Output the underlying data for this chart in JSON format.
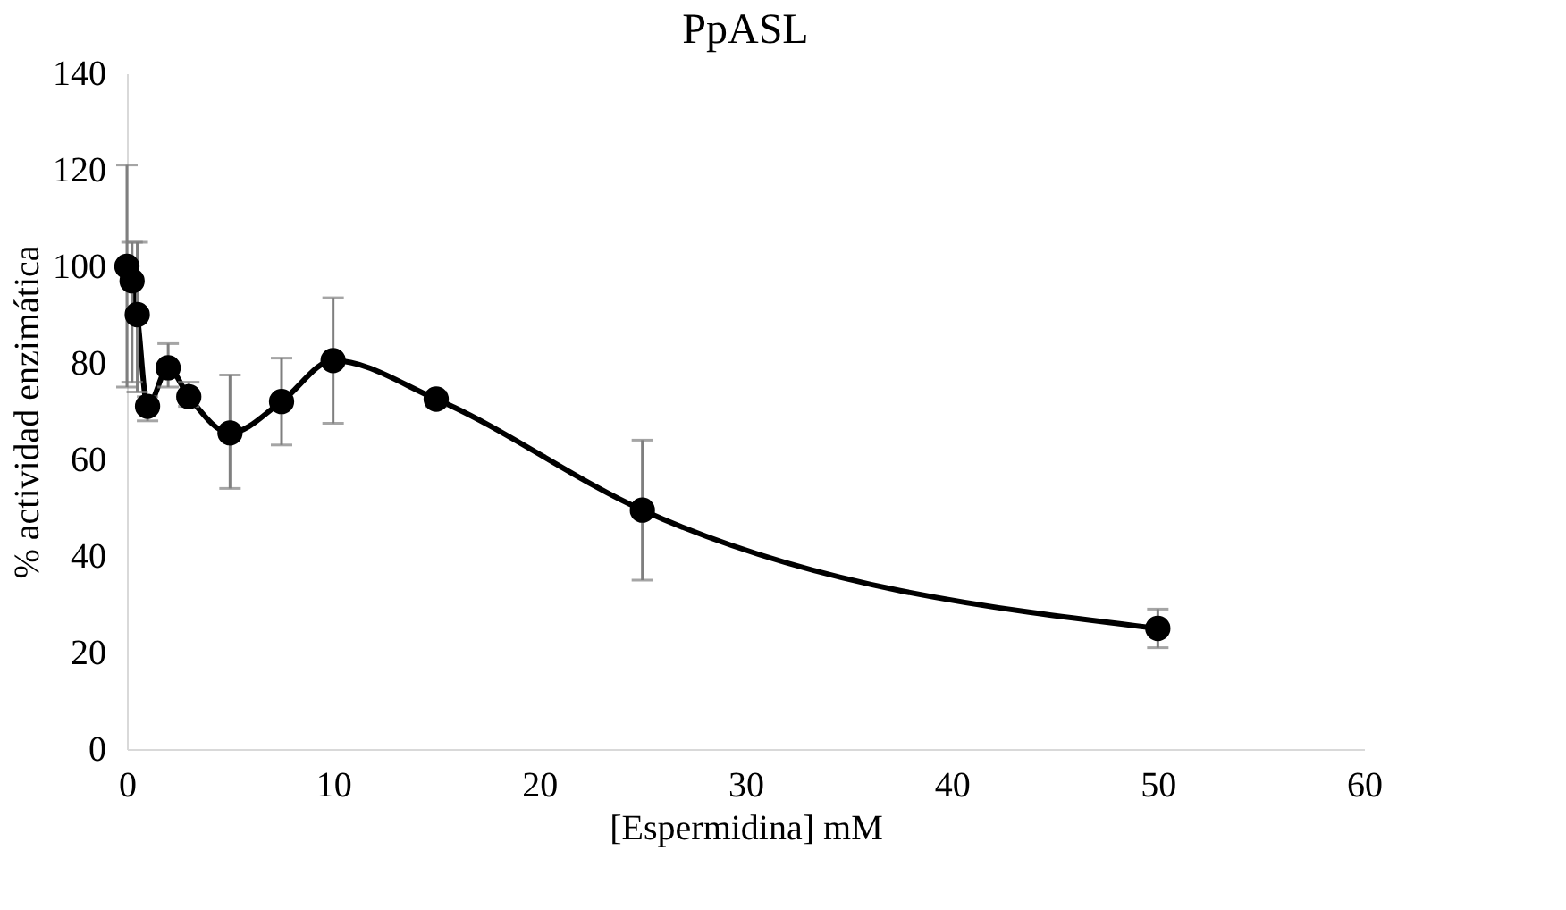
{
  "chart_data": {
    "type": "line",
    "title": "PpASL",
    "xlabel": "[Espermidina] mM",
    "ylabel": "% actividad enzimática",
    "x": [
      0,
      0.25,
      0.5,
      1,
      2,
      3,
      5,
      7.5,
      10,
      15,
      25,
      50
    ],
    "series": [
      {
        "color": "#000000",
        "values": [
          100,
          97,
          90,
          71,
          79,
          73,
          65.5,
          72,
          80.5,
          72.5,
          49.5,
          25
        ],
        "errors": [
          [
            75,
            121
          ],
          [
            76,
            105
          ],
          [
            74,
            105
          ],
          [
            68,
            73
          ],
          [
            75,
            84
          ],
          [
            71,
            76
          ],
          [
            54,
            77.5
          ],
          [
            63,
            81
          ],
          [
            67.5,
            93.5
          ],
          [
            71,
            74
          ],
          [
            35,
            64
          ],
          [
            21,
            29
          ]
        ]
      }
    ],
    "xlim": [
      0,
      60
    ],
    "xticks": [
      0,
      10,
      20,
      30,
      40,
      50,
      60
    ],
    "ylim": [
      0,
      140
    ],
    "yticks": [
      0,
      20,
      40,
      60,
      80,
      100,
      120,
      140
    ],
    "marker": "circle",
    "line_style": "solid",
    "grid": false
  }
}
